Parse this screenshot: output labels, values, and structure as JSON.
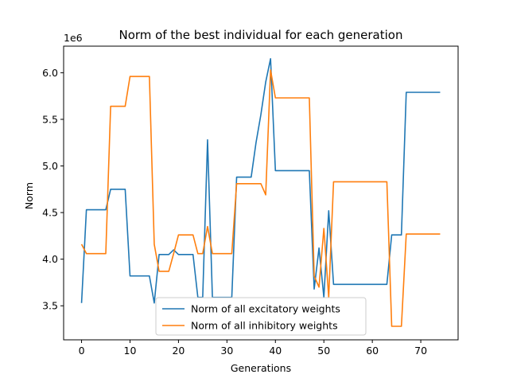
{
  "chart_data": {
    "type": "line",
    "title": "Norm of the best individual for each generation",
    "xlabel": "Generations",
    "ylabel": "Norm",
    "y_offset_text": "1e6",
    "xlim": [
      -3.7,
      77.7
    ],
    "ylim": [
      3.135,
      6.285
    ],
    "x_ticks": [
      0,
      10,
      20,
      30,
      40,
      50,
      60,
      70
    ],
    "x_tick_labels": [
      "0",
      "10",
      "20",
      "30",
      "40",
      "50",
      "60",
      "70"
    ],
    "y_ticks": [
      3.5,
      4.0,
      4.5,
      5.0,
      5.5,
      6.0
    ],
    "y_tick_labels": [
      "3.5",
      "4.0",
      "4.5",
      "5.0",
      "5.5",
      "6.0"
    ],
    "grid": false,
    "legend_position": "lower center",
    "series": [
      {
        "name": "Norm of all excitatory weights",
        "color": "#1f77b4",
        "x": [
          0,
          1,
          2,
          3,
          4,
          5,
          6,
          7,
          8,
          9,
          10,
          11,
          12,
          13,
          14,
          15,
          16,
          17,
          18,
          19,
          20,
          21,
          22,
          23,
          24,
          25,
          26,
          27,
          28,
          29,
          30,
          31,
          32,
          33,
          34,
          35,
          36,
          37,
          38,
          39,
          40,
          41,
          42,
          43,
          44,
          45,
          46,
          47,
          48,
          49,
          50,
          51,
          52,
          53,
          54,
          55,
          56,
          57,
          58,
          59,
          60,
          61,
          62,
          63,
          64,
          65,
          66,
          67,
          68,
          69,
          70,
          71,
          72,
          73,
          74
        ],
        "y": [
          3.53,
          4.53,
          4.53,
          4.53,
          4.53,
          4.53,
          4.75,
          4.75,
          4.75,
          4.75,
          3.82,
          3.82,
          3.82,
          3.82,
          3.82,
          3.53,
          4.05,
          4.05,
          4.05,
          4.1,
          4.05,
          4.05,
          4.05,
          4.05,
          3.59,
          3.59,
          5.28,
          3.59,
          3.59,
          3.59,
          3.59,
          3.59,
          4.88,
          4.88,
          4.88,
          4.88,
          5.25,
          5.55,
          5.9,
          6.15,
          4.95,
          4.95,
          4.95,
          4.95,
          4.95,
          4.95,
          4.95,
          4.95,
          3.68,
          4.12,
          3.59,
          4.52,
          3.73,
          3.73,
          3.73,
          3.73,
          3.73,
          3.73,
          3.73,
          3.73,
          3.73,
          3.73,
          3.73,
          3.73,
          4.26,
          4.26,
          4.26,
          5.79,
          5.79,
          5.79,
          5.79,
          5.79,
          5.79,
          5.79,
          5.79
        ]
      },
      {
        "name": "Norm of all inhibitory weights",
        "color": "#ff7f0e",
        "x": [
          0,
          1,
          2,
          3,
          4,
          5,
          6,
          7,
          8,
          9,
          10,
          11,
          12,
          13,
          14,
          15,
          16,
          17,
          18,
          19,
          20,
          21,
          22,
          23,
          24,
          25,
          26,
          27,
          28,
          29,
          30,
          31,
          32,
          33,
          34,
          35,
          36,
          37,
          38,
          39,
          40,
          41,
          42,
          43,
          44,
          45,
          46,
          47,
          48,
          49,
          50,
          51,
          52,
          53,
          54,
          55,
          56,
          57,
          58,
          59,
          60,
          61,
          62,
          63,
          64,
          65,
          66,
          67,
          68,
          69,
          70,
          71,
          72,
          73,
          74
        ],
        "y": [
          4.16,
          4.06,
          4.06,
          4.06,
          4.06,
          4.06,
          5.64,
          5.64,
          5.64,
          5.64,
          5.96,
          5.96,
          5.96,
          5.96,
          5.96,
          4.16,
          3.87,
          3.87,
          3.87,
          4.06,
          4.26,
          4.26,
          4.26,
          4.26,
          4.06,
          4.06,
          4.35,
          4.06,
          4.06,
          4.06,
          4.06,
          4.06,
          4.81,
          4.81,
          4.81,
          4.81,
          4.81,
          4.81,
          4.69,
          6.03,
          5.73,
          5.73,
          5.73,
          5.73,
          5.73,
          5.73,
          5.73,
          5.73,
          3.82,
          3.7,
          4.33,
          3.59,
          4.83,
          4.83,
          4.83,
          4.83,
          4.83,
          4.83,
          4.83,
          4.83,
          4.83,
          4.83,
          4.83,
          4.83,
          3.28,
          3.28,
          3.28,
          4.27,
          4.27,
          4.27,
          4.27,
          4.27,
          4.27,
          4.27,
          4.27
        ]
      }
    ]
  }
}
